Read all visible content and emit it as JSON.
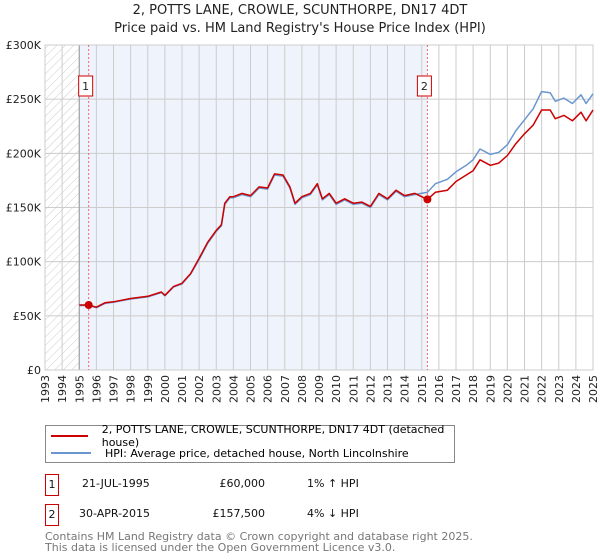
{
  "title_line1": "2, POTTS LANE, CROWLE, SCUNTHORPE, DN17 4DT",
  "title_line2": "Price paid vs. HM Land Registry's House Price Index (HPI)",
  "colors": {
    "property": "#cc0000",
    "hpi": "#6a96d0",
    "shade": "#eef3fc"
  },
  "chart_data": {
    "type": "line",
    "title": "Price paid vs. HM Land Registry's House Price Index (HPI)",
    "xlabel": "",
    "ylabel": "",
    "xlim": [
      1993,
      2025
    ],
    "ylim": [
      0,
      300000
    ],
    "grid": true,
    "yticks": [
      0,
      50000,
      100000,
      150000,
      200000,
      250000,
      300000
    ],
    "ytick_labels": [
      "£0",
      "£50K",
      "£100K",
      "£150K",
      "£200K",
      "£250K",
      "£300K"
    ],
    "xticks": [
      "1993",
      "1994",
      "1995",
      "1996",
      "1997",
      "1998",
      "1999",
      "2000",
      "2001",
      "2002",
      "2003",
      "2004",
      "2005",
      "2006",
      "2007",
      "2008",
      "2009",
      "2010",
      "2011",
      "2012",
      "2013",
      "2014",
      "2015",
      "2016",
      "2017",
      "2018",
      "2019",
      "2020",
      "2021",
      "2022",
      "2023",
      "2024",
      "2025"
    ],
    "x": [
      1995.0,
      1995.55,
      1996,
      1996.5,
      1997,
      1998,
      1999,
      1999.8,
      2000,
      2000.5,
      2001,
      2001.5,
      2002,
      2002.5,
      2003,
      2003.3,
      2003.5,
      2003.8,
      2004,
      2004.5,
      2005,
      2005.5,
      2006,
      2006.4,
      2006.9,
      2007.3,
      2007.6,
      2008,
      2008.5,
      2008.9,
      2009.2,
      2009.6,
      2010,
      2010.5,
      2011,
      2011.5,
      2012,
      2012.5,
      2013,
      2013.5,
      2014,
      2014.6,
      2015.33,
      2015.8,
      2016.5,
      2017,
      2017.6,
      2018,
      2018.4,
      2019,
      2019.5,
      2020,
      2020.5,
      2021,
      2021.5,
      2022,
      2022.5,
      2022.8,
      2023.3,
      2023.8,
      2024.3,
      2024.6,
      2025
    ],
    "series": [
      {
        "name": "2, POTTS LANE, CROWLE, SCUNTHORPE, DN17 4DT (detached house)",
        "color": "#cc0000",
        "values": [
          60000,
          60000,
          58000,
          62000,
          63000,
          66000,
          68000,
          72000,
          69000,
          77000,
          80000,
          89000,
          103000,
          118000,
          129000,
          134000,
          154000,
          160000,
          160000,
          163000,
          161000,
          169000,
          168000,
          181000,
          180000,
          169000,
          154000,
          160000,
          163000,
          172000,
          158000,
          163000,
          154000,
          158000,
          154000,
          155000,
          151000,
          163000,
          158000,
          166000,
          161000,
          163000,
          157500,
          164000,
          166000,
          174000,
          180000,
          184000,
          194000,
          189000,
          191000,
          198000,
          209000,
          218000,
          226000,
          240000,
          240000,
          232000,
          235000,
          230000,
          238000,
          230000,
          240000
        ]
      },
      {
        "name": "HPI: Average price, detached house, North Lincolnshire",
        "color": "#6a96d0",
        "values": [
          59500,
          59500,
          57500,
          61500,
          62500,
          65500,
          67500,
          71500,
          68500,
          76500,
          79500,
          88500,
          102000,
          117000,
          128000,
          133000,
          153000,
          159000,
          159000,
          162000,
          160000,
          168000,
          167000,
          180000,
          179000,
          168000,
          153000,
          159000,
          162000,
          171000,
          157000,
          162000,
          153000,
          157000,
          153000,
          154000,
          150000,
          162000,
          157000,
          165000,
          160000,
          162000,
          164000,
          172000,
          176000,
          183000,
          189000,
          194000,
          204000,
          199000,
          201000,
          208000,
          221000,
          231000,
          241000,
          257000,
          256000,
          248000,
          251000,
          246000,
          254000,
          246000,
          255000
        ]
      }
    ],
    "annotations": [
      {
        "label": "1",
        "x": 1995.55,
        "value": 60000
      },
      {
        "label": "2",
        "x": 2015.33,
        "value": 157500
      }
    ],
    "shaded_region": [
      1995,
      2015.33
    ],
    "hatched_region": [
      1993,
      1995
    ]
  },
  "legend": [
    {
      "label": "2, POTTS LANE, CROWLE, SCUNTHORPE, DN17 4DT (detached house)"
    },
    {
      "label": "HPI: Average price, detached house, North Lincolnshire"
    }
  ],
  "sales": [
    {
      "num": "1",
      "date": "21-JUL-1995",
      "price": "£60,000",
      "hpi": "1% ↑ HPI"
    },
    {
      "num": "2",
      "date": "30-APR-2015",
      "price": "£157,500",
      "hpi": "4% ↓ HPI"
    }
  ],
  "footer_line1": "Contains HM Land Registry data © Crown copyright and database right 2025.",
  "footer_line2": "This data is licensed under the Open Government Licence v3.0."
}
